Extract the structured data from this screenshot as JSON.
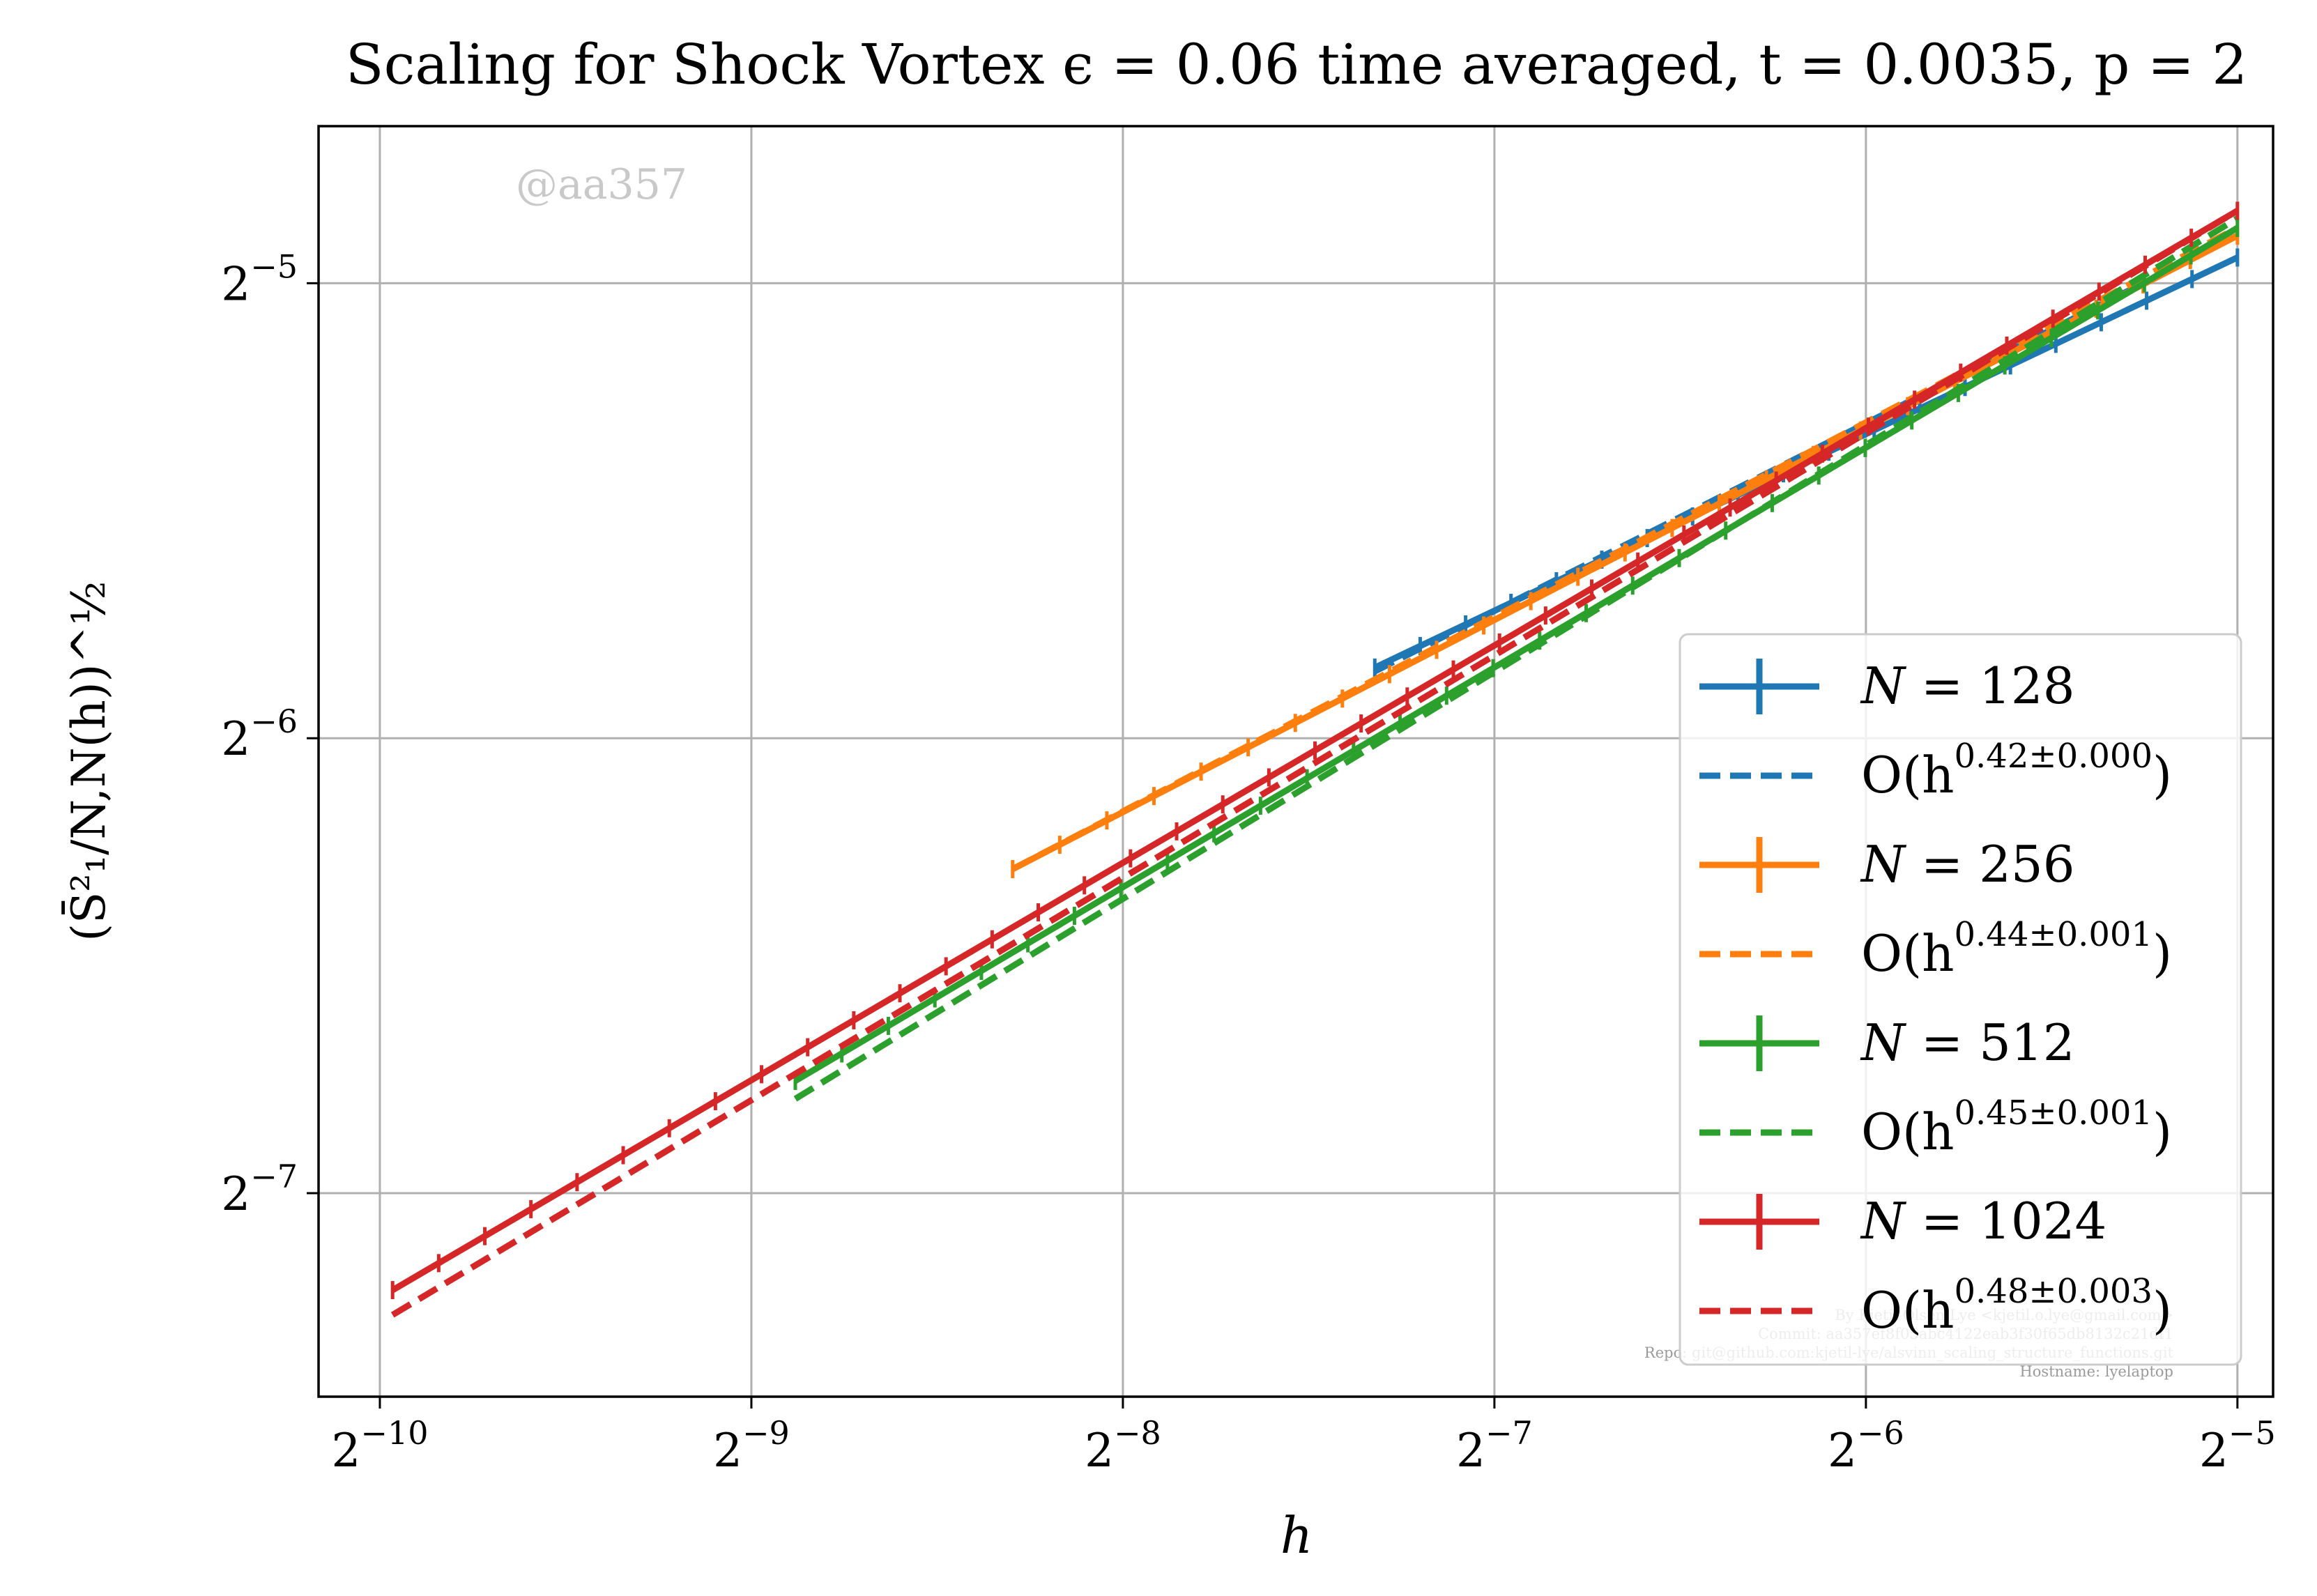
{
  "chart_data": {
    "type": "line",
    "title": "Scaling for Shock Vortex ϵ = 0.06 time averaged, t = 0.0035, p = 2",
    "xlabel": "h",
    "ylabel": "(S̄²₁/N,N(h))^½",
    "xscale": "log2",
    "yscale": "log2",
    "xlim": [
      0.000871,
      0.0334
    ],
    "ylim": [
      0.00573,
      0.0397
    ],
    "xticks": [
      {
        "value": 0.0009765625,
        "base": "2",
        "exp": "−10"
      },
      {
        "value": 0.001953125,
        "base": "2",
        "exp": "−9"
      },
      {
        "value": 0.00390625,
        "base": "2",
        "exp": "−8"
      },
      {
        "value": 0.0078125,
        "base": "2",
        "exp": "−7"
      },
      {
        "value": 0.015625,
        "base": "2",
        "exp": "−6"
      },
      {
        "value": 0.03125,
        "base": "2",
        "exp": "−5"
      }
    ],
    "yticks": [
      {
        "value": 0.0078125,
        "base": "2",
        "exp": "−7"
      },
      {
        "value": 0.015625,
        "base": "2",
        "exp": "−6"
      },
      {
        "value": 0.03125,
        "base": "2",
        "exp": "−5"
      }
    ],
    "grid": true,
    "legend_position": "lower-right",
    "watermark": "@aa357",
    "footer_lines": [
      "By Kjetil Olsen Lye <kjetil.o.lye@gmail.com>",
      "Commit: aa357ef8f05abc4122eab3f30f65db8132c21df1",
      "Repo: git@github.com:kjetil-lye/alsvinn_scaling_structure_functions.git",
      "Hostname: lyelaptop"
    ],
    "series": [
      {
        "label": "N = 128",
        "label_var": "N",
        "label_value": "128",
        "color": "#1f77b4",
        "style": "errorbar",
        "x": [
          0.00625,
          0.03125
        ],
        "y": [
          0.0174,
          0.0325
        ]
      },
      {
        "label": "O(h^0.42±0.000)",
        "label_base": "O(h",
        "label_exp": "0.42±0.000",
        "color": "#1f77b4",
        "style": "dashed",
        "x": [
          0.00625,
          0.03125
        ],
        "y": [
          0.0173,
          0.0336
        ]
      },
      {
        "label": "N = 256",
        "label_var": "N",
        "label_value": "256",
        "color": "#ff7f0e",
        "style": "errorbar",
        "x": [
          0.00318,
          0.03125
        ],
        "y": [
          0.0128,
          0.0336
        ]
      },
      {
        "label": "O(h^0.44±0.001)",
        "label_base": "O(h",
        "label_exp": "0.44±0.001",
        "color": "#ff7f0e",
        "style": "dashed",
        "x": [
          0.00318,
          0.03125
        ],
        "y": [
          0.0128,
          0.034
        ]
      },
      {
        "label": "N = 512",
        "label_var": "N",
        "label_value": "512",
        "color": "#2ca02c",
        "style": "errorbar",
        "x": [
          0.00212,
          0.03125
        ],
        "y": [
          0.00927,
          0.034
        ]
      },
      {
        "label": "O(h^0.45±0.001)",
        "label_base": "O(h",
        "label_exp": "0.45±0.001",
        "color": "#2ca02c",
        "style": "dashed",
        "x": [
          0.00212,
          0.03125
        ],
        "y": [
          0.00902,
          0.0345
        ]
      },
      {
        "label": "N = 1024",
        "label_var": "N",
        "label_value": "1024",
        "color": "#d62728",
        "style": "errorbar",
        "x": [
          0.001,
          0.03125
        ],
        "y": [
          0.00674,
          0.0349
        ]
      },
      {
        "label": "O(h^0.48±0.003)",
        "label_base": "O(h",
        "label_exp": "0.48±0.003",
        "color": "#d62728",
        "style": "dashed",
        "x": [
          0.001,
          0.03125
        ],
        "y": [
          0.00649,
          0.0349
        ]
      }
    ]
  }
}
